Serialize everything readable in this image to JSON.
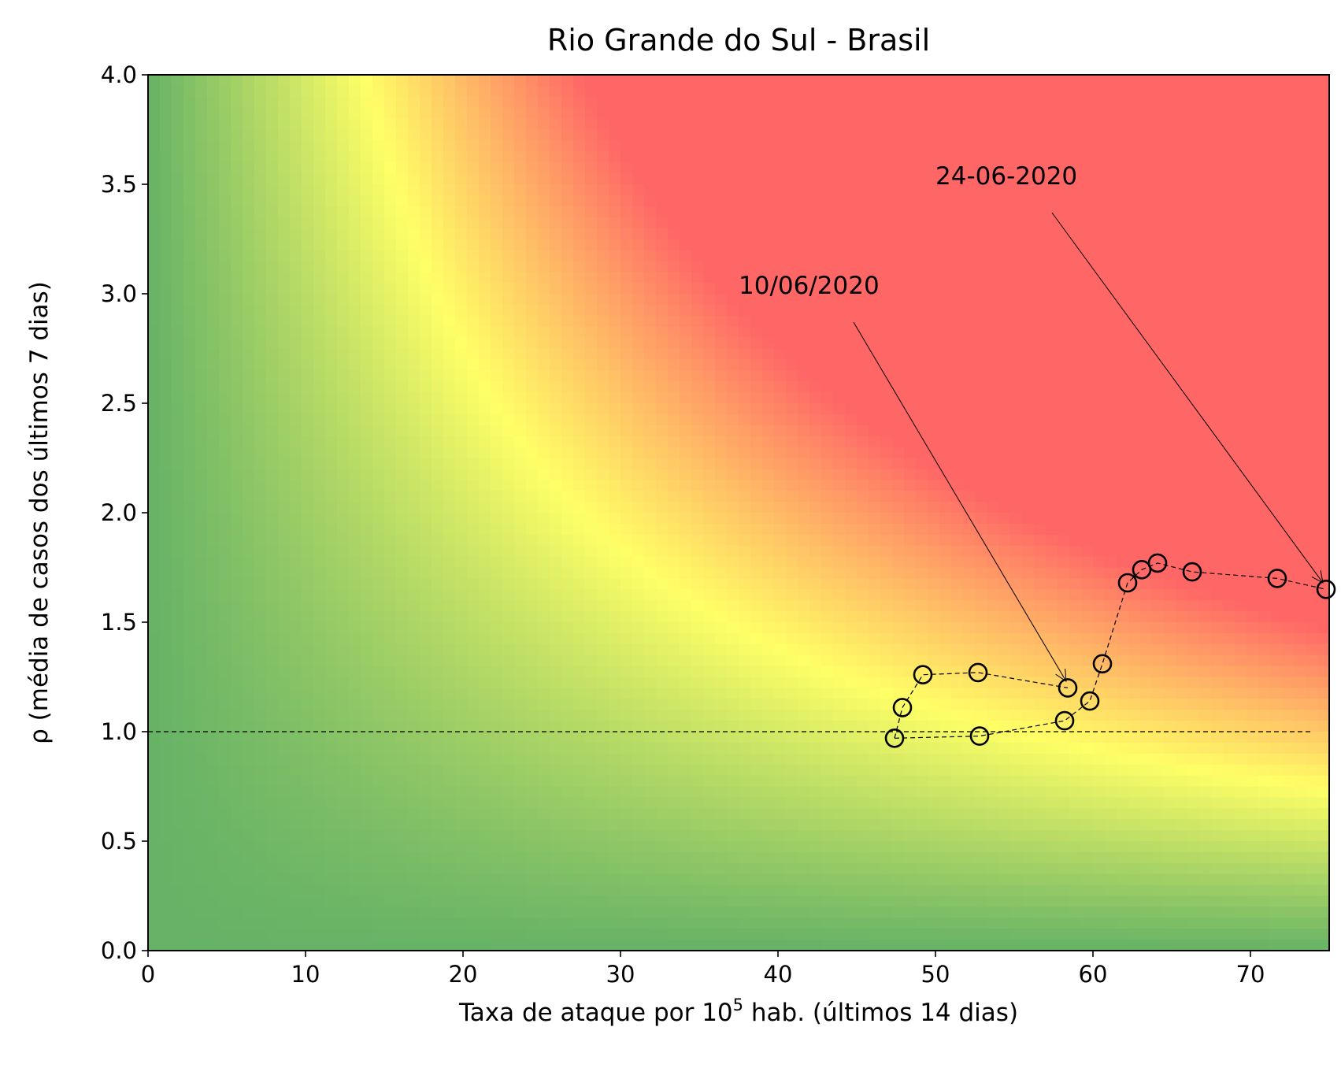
{
  "chart_data": {
    "type": "scatter",
    "title": "Rio Grande do Sul - Brasil",
    "xlabel_main": "Taxa de ataque por 10",
    "xlabel_sup": "5",
    "xlabel_rest": " hab. (últimos 14 dias)",
    "ylabel": "ρ (média de casos dos últimos 7 dias)",
    "xlim": [
      0,
      75
    ],
    "ylim": [
      0,
      4
    ],
    "xticks": [
      "0",
      "10",
      "20",
      "30",
      "40",
      "50",
      "60",
      "70"
    ],
    "yticks": [
      "0.0",
      "0.5",
      "1.0",
      "1.5",
      "2.0",
      "2.5",
      "3.0",
      "3.5",
      "4.0"
    ],
    "background": "risk heatmap: green (low) → yellow → red (high), risk grows with x·ρ",
    "colors": {
      "green": "#66b266",
      "yellow": "#ffff66",
      "red": "#ff6666",
      "marker": "#000000"
    },
    "reference_line": {
      "y": 1.0,
      "x_range": [
        0,
        74
      ],
      "style": "dashed"
    },
    "points": [
      {
        "x": 47.4,
        "y": 0.97
      },
      {
        "x": 52.8,
        "y": 0.98
      },
      {
        "x": 58.2,
        "y": 1.05
      },
      {
        "x": 59.8,
        "y": 1.14
      },
      {
        "x": 60.6,
        "y": 1.31
      },
      {
        "x": 62.2,
        "y": 1.68
      },
      {
        "x": 63.1,
        "y": 1.74
      },
      {
        "x": 64.1,
        "y": 1.77
      },
      {
        "x": 66.3,
        "y": 1.73
      },
      {
        "x": 71.7,
        "y": 1.7
      },
      {
        "x": 74.8,
        "y": 1.65
      }
    ],
    "second_path": [
      {
        "x": 47.4,
        "y": 0.97
      },
      {
        "x": 47.9,
        "y": 1.11
      },
      {
        "x": 49.2,
        "y": 1.26
      },
      {
        "x": 52.7,
        "y": 1.27
      },
      {
        "x": 58.4,
        "y": 1.2
      }
    ],
    "annotations": [
      {
        "text": "10/06/2020",
        "text_x": 37.5,
        "text_y": 3.0,
        "arrow_from": [
          44.8,
          2.87
        ],
        "arrow_to": [
          58.3,
          1.23
        ]
      },
      {
        "text": "24-06-2020",
        "text_x": 50.0,
        "text_y": 3.5,
        "arrow_from": [
          57.4,
          3.37
        ],
        "arrow_to": [
          74.6,
          1.68
        ]
      }
    ]
  }
}
